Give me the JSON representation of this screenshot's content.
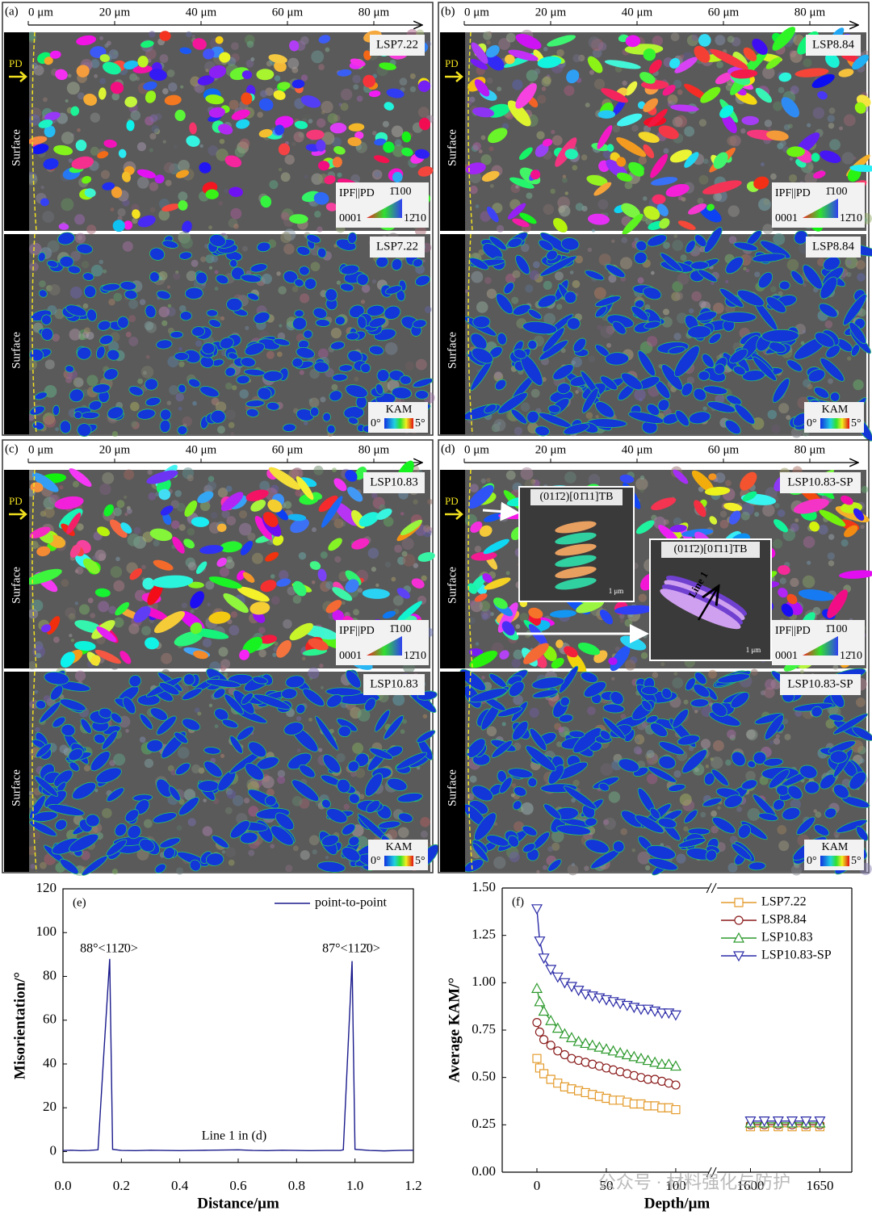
{
  "panels": [
    {
      "label": "(a)",
      "scale_ticks": [
        "0 μm",
        "20 μm",
        "40 μm",
        "60 μm",
        "80 μm"
      ],
      "sample": "LSP7.22",
      "pd": "PD",
      "surface": "Surface",
      "ipf_legend": {
        "title": "IPF||PD",
        "top": "1̄100",
        "left": "0001",
        "right": "12̄10"
      },
      "kam_legend": {
        "title": "KAM",
        "min": "0°",
        "max": "5°"
      }
    },
    {
      "label": "(b)",
      "scale_ticks": [
        "0 μm",
        "20 μm",
        "40 μm",
        "60 μm",
        "80 μm"
      ],
      "sample": "LSP8.84",
      "pd": "PD",
      "surface": "Surface",
      "ipf_legend": {
        "title": "IPF||PD",
        "top": "1̄100",
        "left": "0001",
        "right": "12̄10"
      },
      "kam_legend": {
        "title": "KAM",
        "min": "0°",
        "max": "5°"
      }
    },
    {
      "label": "(c)",
      "scale_ticks": [
        "0 μm",
        "20 μm",
        "40 μm",
        "60 μm",
        "80 μm"
      ],
      "sample": "LSP10.83",
      "pd": "PD",
      "surface": "Surface",
      "ipf_legend": {
        "title": "IPF||PD",
        "top": "1̄100",
        "left": "0001",
        "right": "12̄10"
      },
      "kam_legend": {
        "title": "KAM",
        "min": "0°",
        "max": "5°"
      }
    },
    {
      "label": "(d)",
      "scale_ticks": [
        "0 μm",
        "20 μm",
        "40 μm",
        "60 μm",
        "80 μm"
      ],
      "sample": "LSP10.83-SP",
      "pd": "PD",
      "surface": "Surface",
      "ipf_legend": {
        "title": "IPF||PD",
        "top": "1̄100",
        "left": "0001",
        "right": "12̄10"
      },
      "kam_legend": {
        "title": "KAM",
        "min": "0°",
        "max": "5°"
      },
      "insets": [
        {
          "title": "(011̄2)[01̄11]TB",
          "scale": "1 μm"
        },
        {
          "title": "(011̄2)[01̄11]TB",
          "scale": "1 μm",
          "line": "Line 1"
        }
      ]
    }
  ],
  "watermark": "公众号 · 材料强化与防护",
  "chart_data": [
    {
      "type": "line",
      "label": "(e)",
      "x_label": "Distance/μm",
      "y_label": "Misorientation/°",
      "annotations": [
        "88°<112̄0>",
        "87°<112̄0>",
        "Line 1 in (d)"
      ],
      "x": [
        0,
        0.03,
        0.06,
        0.09,
        0.12,
        0.14,
        0.16,
        0.17,
        0.2,
        0.25,
        0.3,
        0.35,
        0.4,
        0.45,
        0.5,
        0.55,
        0.6,
        0.65,
        0.7,
        0.75,
        0.8,
        0.85,
        0.9,
        0.95,
        0.96,
        0.99,
        1.0,
        1.05,
        1.1,
        1.15,
        1.2
      ],
      "series": [
        {
          "name": "point-to-point",
          "color": "#1a1a8c",
          "values": [
            0.5,
            0.6,
            0.4,
            0.5,
            0.8,
            45,
            88,
            1,
            0.5,
            0.4,
            0.6,
            0.5,
            0.4,
            0.5,
            0.6,
            0.7,
            0.8,
            0.5,
            0.4,
            0.6,
            0.5,
            0.4,
            0.5,
            0.5,
            0.8,
            87,
            1,
            0.5,
            0.3,
            0.5,
            0.6
          ]
        }
      ],
      "xlim": [
        0,
        1.2
      ],
      "xticks": [
        {
          "value": 0,
          "label": "0.0"
        },
        0.2,
        0.4,
        0.6,
        0.8,
        {
          "value": 1,
          "label": "1.0"
        },
        1.2
      ],
      "ylim": [
        -5,
        120
      ],
      "yticks": [
        0,
        20,
        40,
        60,
        80,
        100,
        120
      ],
      "legend": "upper right"
    },
    {
      "type": "line",
      "label": "(f)",
      "x_label": "Depth/μm",
      "y_label": "Average KAM/°",
      "x": [
        0,
        2,
        5,
        10,
        15,
        20,
        25,
        30,
        35,
        40,
        45,
        50,
        55,
        60,
        65,
        70,
        75,
        80,
        85,
        90,
        95,
        100,
        1600,
        1610,
        1620,
        1630,
        1640,
        1650
      ],
      "series": [
        {
          "name": "LSP7.22",
          "color": "#e39a2a",
          "marker": "square",
          "values": [
            0.6,
            0.55,
            0.52,
            0.49,
            0.47,
            0.45,
            0.44,
            0.43,
            0.42,
            0.41,
            0.4,
            0.39,
            0.38,
            0.38,
            0.37,
            0.36,
            0.36,
            0.35,
            0.35,
            0.34,
            0.34,
            0.33,
            0.24,
            0.24,
            0.24,
            0.24,
            0.24,
            0.24
          ]
        },
        {
          "name": "LSP8.84",
          "color": "#8b1c1c",
          "marker": "circle",
          "values": [
            0.79,
            0.74,
            0.7,
            0.67,
            0.64,
            0.62,
            0.6,
            0.59,
            0.58,
            0.57,
            0.56,
            0.55,
            0.54,
            0.53,
            0.52,
            0.51,
            0.5,
            0.49,
            0.49,
            0.48,
            0.47,
            0.46,
            0.25,
            0.25,
            0.25,
            0.25,
            0.25,
            0.25
          ]
        },
        {
          "name": "LSP10.83",
          "color": "#2e9a2e",
          "marker": "triangle",
          "values": [
            0.97,
            0.9,
            0.85,
            0.8,
            0.76,
            0.73,
            0.71,
            0.69,
            0.68,
            0.67,
            0.66,
            0.65,
            0.64,
            0.63,
            0.62,
            0.61,
            0.6,
            0.59,
            0.58,
            0.57,
            0.57,
            0.56,
            0.26,
            0.26,
            0.26,
            0.26,
            0.26,
            0.26
          ]
        },
        {
          "name": "LSP10.83-SP",
          "color": "#2c2ca8",
          "marker": "triangle-down",
          "values": [
            1.39,
            1.22,
            1.13,
            1.07,
            1.03,
            1.0,
            0.98,
            0.96,
            0.94,
            0.93,
            0.92,
            0.91,
            0.9,
            0.89,
            0.88,
            0.87,
            0.86,
            0.86,
            0.85,
            0.84,
            0.84,
            0.83,
            0.27,
            0.27,
            0.27,
            0.27,
            0.27,
            0.27
          ]
        }
      ],
      "xlim_segments": [
        [
          -25,
          124
        ],
        [
          1576,
          1673
        ]
      ],
      "xticks": [
        0,
        50,
        100,
        1600,
        1650
      ],
      "ylim": [
        0,
        1.5
      ],
      "yticks": [
        {
          "value": 0,
          "label": "0.00"
        },
        0.25,
        {
          "value": 0.5,
          "label": "0.50"
        },
        0.75,
        {
          "value": 1,
          "label": "1.00"
        },
        1.25,
        {
          "value": 1.5,
          "label": "1.50"
        }
      ],
      "legend": "upper right"
    }
  ]
}
